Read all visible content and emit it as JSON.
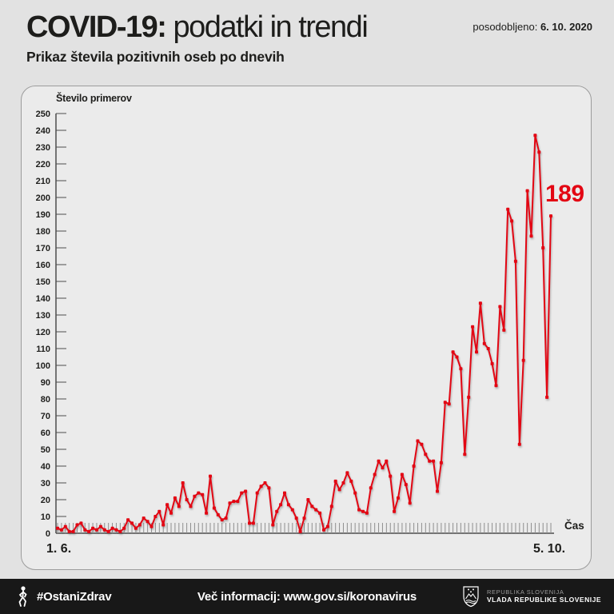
{
  "header": {
    "title_bold": "COVID-19:",
    "title_rest": " podatki in trendi",
    "updated_label": "posodobljeno: ",
    "updated_date": "6. 10. 2020",
    "subtitle": "Prikaz števila pozitivnih oseb po dnevih"
  },
  "chart_data": {
    "type": "line",
    "title": "Prikaz števila pozitivnih oseb po dnevih",
    "ylabel": "Število primerov",
    "xlabel": "Čas",
    "x_start_label": "1. 6.",
    "x_end_label": "5. 10.",
    "x_range_dates": [
      "1. 6. 2020",
      "5. 10. 2020"
    ],
    "ylim": [
      0,
      250
    ],
    "y_tick_step": 10,
    "grid": false,
    "legend": "none",
    "series_color": "#e30613",
    "annotation": {
      "text": "189",
      "value": 189,
      "applies_to": "last point (5. 10.)"
    },
    "values": [
      3,
      2,
      4,
      1,
      1,
      5,
      6,
      2,
      1,
      3,
      2,
      4,
      2,
      1,
      3,
      2,
      1,
      3,
      8,
      6,
      3,
      5,
      9,
      7,
      4,
      10,
      13,
      5,
      17,
      12,
      21,
      16,
      30,
      20,
      16,
      22,
      24,
      23,
      12,
      34,
      15,
      11,
      8,
      9,
      18,
      19,
      19,
      24,
      25,
      6,
      6,
      24,
      28,
      30,
      27,
      5,
      13,
      17,
      24,
      17,
      14,
      9,
      1,
      9,
      20,
      16,
      14,
      12,
      2,
      4,
      16,
      31,
      26,
      30,
      36,
      31,
      24,
      14,
      13,
      12,
      27,
      35,
      43,
      39,
      43,
      34,
      13,
      21,
      35,
      29,
      18,
      40,
      55,
      53,
      47,
      43,
      43,
      25,
      42,
      78,
      77,
      108,
      105,
      98,
      47,
      81,
      123,
      108,
      137,
      113,
      110,
      101,
      88,
      135,
      121,
      193,
      186,
      162,
      53,
      103,
      204,
      177,
      237,
      227,
      170,
      81,
      189
    ]
  },
  "footer": {
    "hashtag": "#OstaniZdrav",
    "info": "Več informacij: www.gov.si/koronavirus",
    "gov_line1": "REPUBLIKA SLOVENIJA",
    "gov_line2": "VLADA REPUBLIKE SLOVENIJE"
  },
  "colors": {
    "accent_red": "#e30613",
    "page_bg": "#e2e2e2",
    "card_bg": "#ebebeb",
    "footer_bg": "#181818",
    "axis": "#4d4d4d"
  }
}
